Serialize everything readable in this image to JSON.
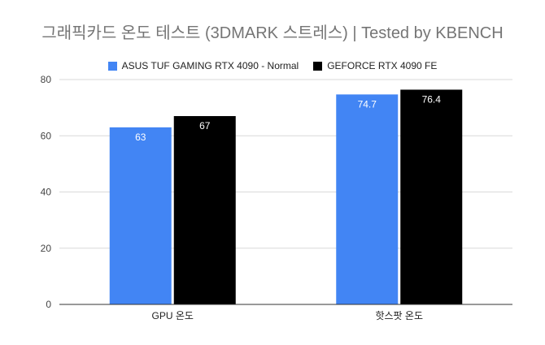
{
  "chart_data": {
    "type": "bar",
    "title": "그래픽카드 온도 테스트 (3DMARK 스트레스)  | Tested by KBENCH",
    "xlabel": "",
    "ylabel": "",
    "categories": [
      "GPU 온도",
      "핫스팟 온도"
    ],
    "series": [
      {
        "name": "ASUS TUF GAMING RTX 4090 - Normal",
        "color": "#4285f4",
        "label_color": "#ffffff",
        "values": [
          63,
          74.7
        ],
        "labels": [
          "63",
          "74.7"
        ]
      },
      {
        "name": "GEFORCE RTX 4090 FE",
        "color": "#000000",
        "label_color": "#ffffff",
        "values": [
          67,
          76.4
        ],
        "labels": [
          "67",
          "76.4"
        ]
      }
    ],
    "ylim": [
      0,
      80
    ],
    "yticks": [
      0,
      20,
      40,
      60,
      80
    ],
    "ytick_labels": [
      "0",
      "20",
      "40",
      "60",
      "80"
    ],
    "grid": true,
    "legend_position": "top"
  }
}
